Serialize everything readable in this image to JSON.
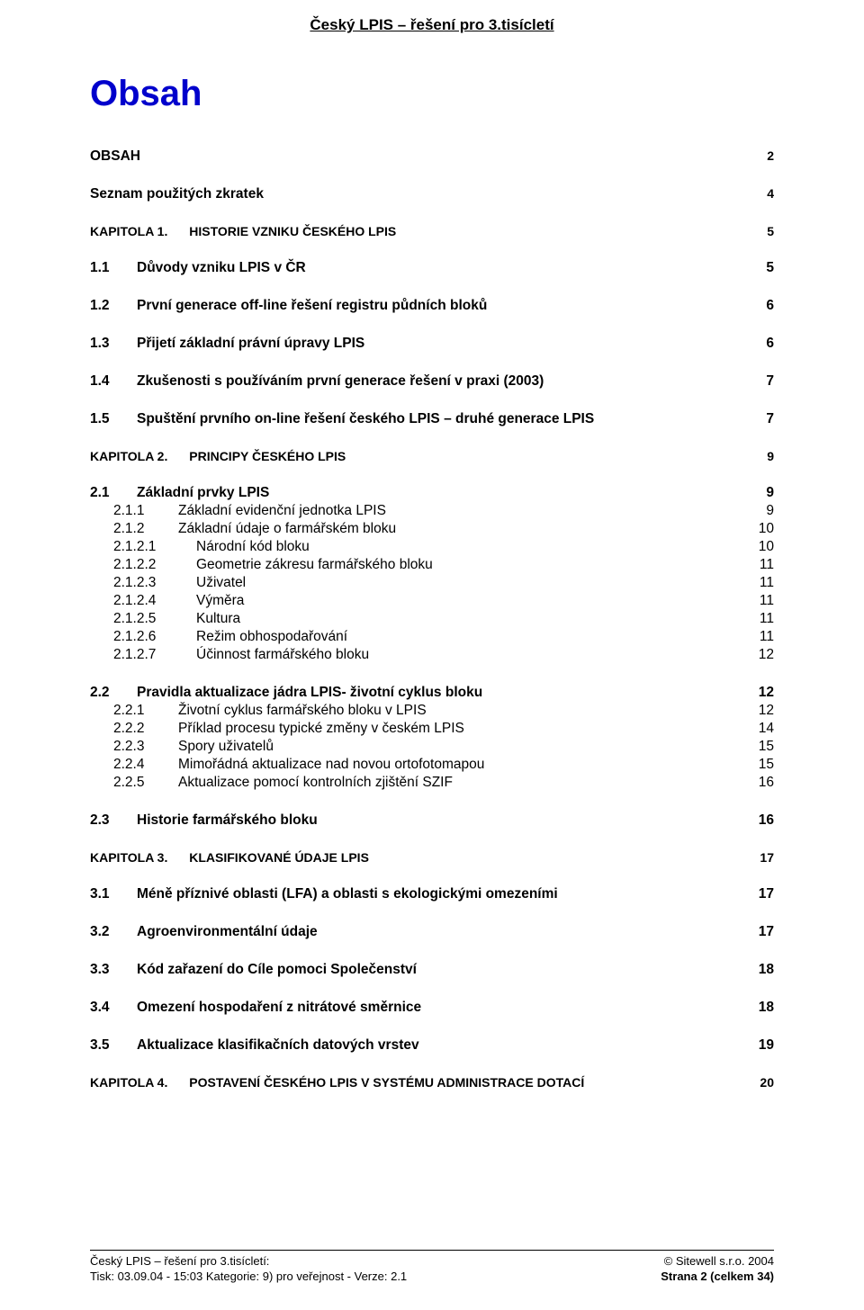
{
  "running_header": "Český LPIS – řešení pro 3.tisícletí",
  "title": "Obsah",
  "toc": {
    "top": [
      {
        "label": "OBSAH",
        "page": "2"
      },
      {
        "label": "Seznam použitých zkratek",
        "page": "4"
      }
    ],
    "kap1": {
      "num": "KAPITOLA 1.",
      "label": "HISTORIE VZNIKU ČESKÉHO LPIS",
      "page": "5"
    },
    "h2_1": [
      {
        "num": "1.1",
        "label": "Důvody vzniku LPIS v ČR",
        "page": "5"
      },
      {
        "num": "1.2",
        "label": "První generace off-line řešení registru půdních bloků",
        "page": "6"
      },
      {
        "num": "1.3",
        "label": "Přijetí základní právní úpravy LPIS",
        "page": "6"
      },
      {
        "num": "1.4",
        "label": "Zkušenosti s používáním první generace řešení v praxi (2003)",
        "page": "7"
      },
      {
        "num": "1.5",
        "label": "Spuštění prvního on-line řešení českého LPIS – druhé generace LPIS",
        "page": "7"
      }
    ],
    "kap2": {
      "num": "KAPITOLA 2.",
      "label": "PRINCIPY ČESKÉHO LPIS",
      "page": "9"
    },
    "g21": {
      "head": {
        "num": "2.1",
        "label": "Základní prvky LPIS",
        "page": "9"
      },
      "sub": [
        {
          "num": "2.1.1",
          "label": "Základní evidenční jednotka LPIS",
          "page": "9"
        },
        {
          "num": "2.1.2",
          "label": "Základní údaje o farmářském bloku",
          "page": "10"
        }
      ],
      "subsub": [
        {
          "num": "2.1.2.1",
          "label": "Národní kód bloku",
          "page": "10"
        },
        {
          "num": "2.1.2.2",
          "label": "Geometrie zákresu farmářského bloku",
          "page": "11"
        },
        {
          "num": "2.1.2.3",
          "label": "Uživatel",
          "page": "11"
        },
        {
          "num": "2.1.2.4",
          "label": "Výměra",
          "page": "11"
        },
        {
          "num": "2.1.2.5",
          "label": "Kultura",
          "page": "11"
        },
        {
          "num": "2.1.2.6",
          "label": "Režim obhospodařování",
          "page": "11"
        },
        {
          "num": "2.1.2.7",
          "label": "Účinnost farmářského bloku",
          "page": "12"
        }
      ]
    },
    "g22": {
      "head": {
        "num": "2.2",
        "label": "Pravidla aktualizace jádra LPIS- životní cyklus bloku",
        "page": "12"
      },
      "sub": [
        {
          "num": "2.2.1",
          "label": "Životní cyklus farmářského bloku v LPIS",
          "page": "12"
        },
        {
          "num": "2.2.2",
          "label": "Příklad procesu typické změny v českém LPIS",
          "page": "14"
        },
        {
          "num": "2.2.3",
          "label": "Spory uživatelů",
          "page": "15"
        },
        {
          "num": "2.2.4",
          "label": "Mimořádná aktualizace nad novou ortofotomapou",
          "page": "15"
        },
        {
          "num": "2.2.5",
          "label": "Aktualizace pomocí kontrolních zjištění SZIF",
          "page": "16"
        }
      ]
    },
    "h2_23": {
      "num": "2.3",
      "label": "Historie farmářského bloku",
      "page": "16"
    },
    "kap3": {
      "num": "KAPITOLA 3.",
      "label": "KLASIFIKOVANÉ ÚDAJE LPIS",
      "page": "17"
    },
    "h2_3": [
      {
        "num": "3.1",
        "label": "Méně příznivé oblasti (LFA) a oblasti s ekologickými omezeními",
        "page": "17"
      },
      {
        "num": "3.2",
        "label": "Agroenvironmentální  údaje",
        "page": "17"
      },
      {
        "num": "3.3",
        "label": "Kód zařazení do Cíle pomoci Společenství",
        "page": "18"
      },
      {
        "num": "3.4",
        "label": "Omezení hospodaření z nitrátové směrnice",
        "page": "18"
      },
      {
        "num": "3.5",
        "label": "Aktualizace klasifikačních datových vrstev",
        "page": "19"
      }
    ],
    "kap4": {
      "num": "KAPITOLA 4.",
      "label": "POSTAVENÍ ČESKÉHO LPIS V SYSTÉMU ADMINISTRACE DOTACÍ",
      "page": "20"
    }
  },
  "footer": {
    "left1": "Český LPIS – řešení pro 3.tisícletí:",
    "right1": "© Sitewell s.r.o. 2004",
    "left2": "Tisk: 03.09.04 - 15:03 Kategorie: 9) pro veřejnost - Verze: 2.1",
    "right2": "Strana 2 (celkem 34)"
  },
  "colors": {
    "title": "#0000cc",
    "text": "#000000",
    "bg": "#ffffff"
  }
}
